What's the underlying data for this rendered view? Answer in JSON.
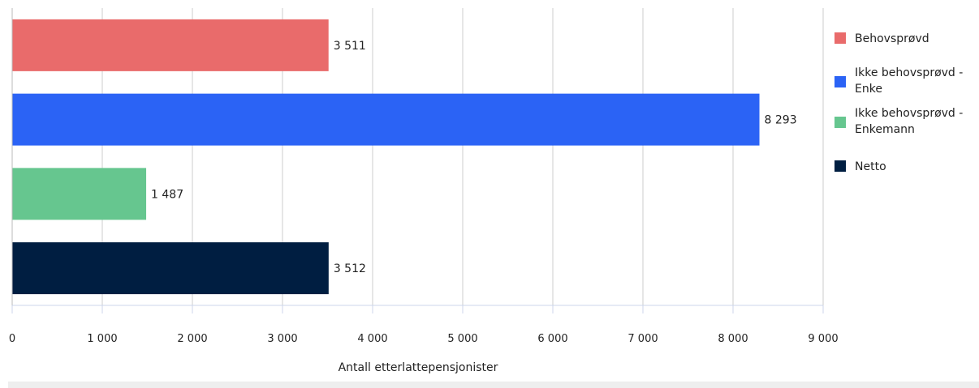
{
  "chart_data": {
    "type": "bar",
    "orientation": "horizontal",
    "categories": [
      "Behovsprøvd",
      "Ikke behovsprøvd - Enke",
      "Ikke behovsprøvd - Enkemann",
      "Netto"
    ],
    "values": [
      3511,
      8293,
      1487,
      3512
    ],
    "value_labels": [
      "3 511",
      "8 293",
      "1 487",
      "3 512"
    ],
    "colors": [
      "#e96b6b",
      "#2b63f5",
      "#66c68f",
      "#001e41"
    ],
    "xlabel": "Antall etterlattepensjonister",
    "xlim": [
      0,
      9000
    ],
    "xticks": [
      0,
      1000,
      2000,
      3000,
      4000,
      5000,
      6000,
      7000,
      8000,
      9000
    ],
    "xtick_labels": [
      "0",
      "1 000",
      "2 000",
      "3 000",
      "4 000",
      "5 000",
      "6 000",
      "7 000",
      "8 000",
      "9 000"
    ],
    "grid": "vertical",
    "legend": {
      "placement": "right",
      "entries": [
        {
          "lines": [
            "Behovsprøvd"
          ],
          "color": "#e96b6b"
        },
        {
          "lines": [
            "Ikke behovsprøvd -",
            "Enke"
          ],
          "color": "#2b63f5"
        },
        {
          "lines": [
            "Ikke behovsprøvd -",
            "Enkemann"
          ],
          "color": "#66c68f"
        },
        {
          "lines": [
            "Netto"
          ],
          "color": "#001e41"
        }
      ]
    }
  }
}
